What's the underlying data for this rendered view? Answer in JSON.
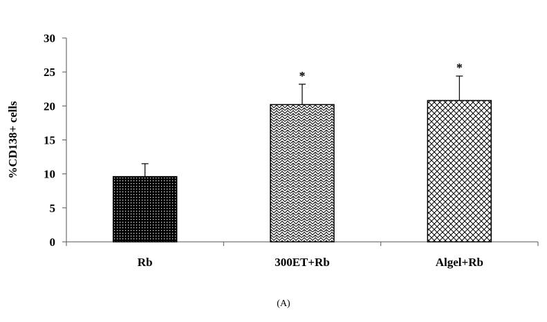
{
  "chart_data": {
    "type": "bar",
    "categories": [
      "Rb",
      "300ET+Rb",
      "Algel+Rb"
    ],
    "values": [
      9.6,
      20.2,
      20.8
    ],
    "errors": [
      1.9,
      3.0,
      3.6
    ],
    "significance": [
      "",
      "*",
      "*"
    ],
    "patterns": [
      "dots",
      "weave",
      "crosshatch"
    ],
    "ylabel": "%CD138+ cells",
    "xlabel": "",
    "ylim": [
      0,
      30
    ],
    "yticks": [
      0,
      5,
      10,
      15,
      20,
      25,
      30
    ],
    "grid": false,
    "caption": "(A)"
  }
}
